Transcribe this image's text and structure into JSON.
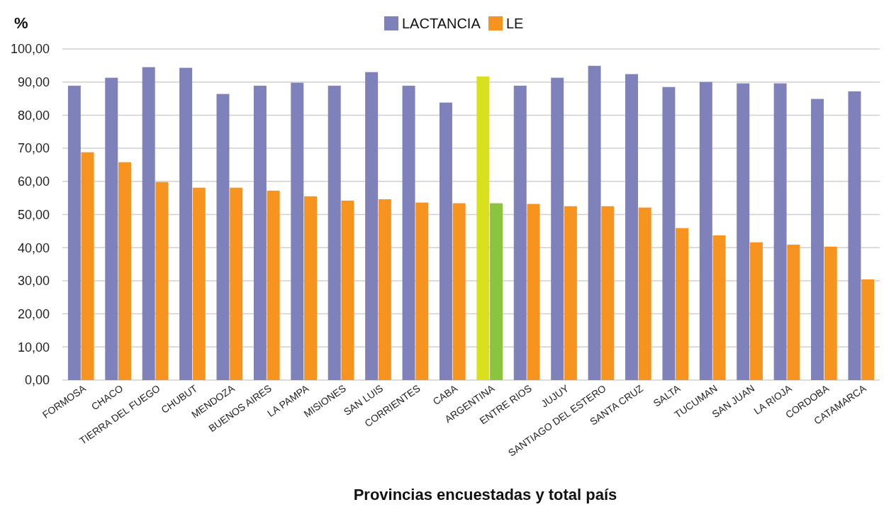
{
  "chart_data": {
    "type": "bar",
    "ylabel": "%",
    "xlabel": "Provincias encuestadas y total país",
    "categories": [
      "FORMOSA",
      "CHACO",
      "TIERRA DEL FUEGO",
      "CHUBUT",
      "MENDOZA",
      "BUENOS AIRES",
      "LA PAMPA",
      "MISIONES",
      "SAN LUIS",
      "CORRIENTES",
      "CABA",
      "ARGENTINA",
      "ENTRE RIOS",
      "JUJUY",
      "SANTIAGO DEL ESTERO",
      "SANTA CRUZ",
      "SALTA",
      "TUCUMAN",
      "SAN JUAN",
      "LA RIOJA",
      "CORDOBA",
      "CATAMARCA"
    ],
    "series": [
      {
        "name": "LACTANCIA",
        "color": "#7f81bb",
        "colors": [
          "#7f81bb",
          "#7f81bb",
          "#7f81bb",
          "#7f81bb",
          "#7f81bb",
          "#7f81bb",
          "#7f81bb",
          "#7f81bb",
          "#7f81bb",
          "#7f81bb",
          "#7f81bb",
          "#d9e01e",
          "#7f81bb",
          "#7f81bb",
          "#7f81bb",
          "#7f81bb",
          "#7f81bb",
          "#7f81bb",
          "#7f81bb",
          "#7f81bb",
          "#7f81bb",
          "#7f81bb"
        ],
        "values": [
          88.9,
          91.3,
          94.5,
          94.3,
          86.4,
          88.9,
          89.8,
          88.9,
          93.0,
          88.9,
          83.8,
          91.7,
          88.9,
          91.3,
          94.9,
          92.4,
          88.5,
          90.0,
          89.6,
          89.6,
          84.9,
          87.2
        ]
      },
      {
        "name": "LE",
        "color": "#f7941f",
        "colors": [
          "#f7941f",
          "#f7941f",
          "#f7941f",
          "#f7941f",
          "#f7941f",
          "#f7941f",
          "#f7941f",
          "#f7941f",
          "#f7941f",
          "#f7941f",
          "#f7941f",
          "#8bc53f",
          "#f7941f",
          "#f7941f",
          "#f7941f",
          "#f7941f",
          "#f7941f",
          "#f7941f",
          "#f7941f",
          "#f7941f",
          "#f7941f",
          "#f7941f"
        ],
        "values": [
          68.8,
          65.8,
          59.8,
          58.1,
          58.1,
          57.2,
          55.5,
          54.2,
          54.6,
          53.6,
          53.4,
          53.4,
          53.2,
          52.5,
          52.5,
          52.1,
          45.9,
          43.7,
          41.6,
          40.9,
          40.3,
          30.4
        ]
      }
    ],
    "ylim": [
      0,
      100
    ],
    "yticks": [
      {
        "value": 0,
        "label": "0,00"
      },
      {
        "value": 10,
        "label": "10,00"
      },
      {
        "value": 20,
        "label": "20,00"
      },
      {
        "value": 30,
        "label": "30,00"
      },
      {
        "value": 40,
        "label": "40,00"
      },
      {
        "value": 50,
        "label": "50,00"
      },
      {
        "value": 60,
        "label": "60,00"
      },
      {
        "value": 70,
        "label": "70,00"
      },
      {
        "value": 80,
        "label": "80,00"
      },
      {
        "value": 90,
        "label": "90,00"
      },
      {
        "value": 100,
        "label": "100,00"
      }
    ],
    "grid": "y",
    "legend": "top"
  }
}
